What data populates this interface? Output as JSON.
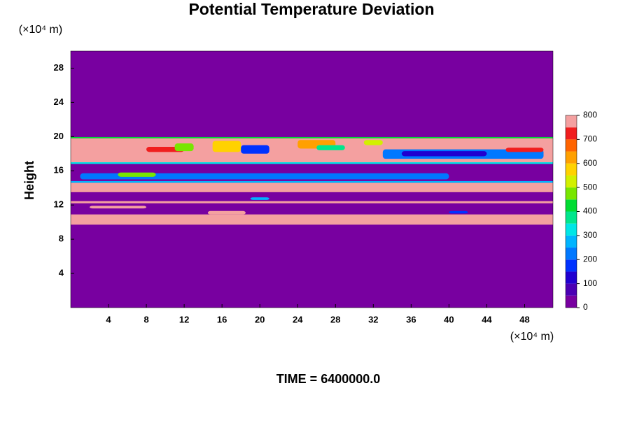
{
  "chart_data": {
    "type": "heatmap",
    "title": "Potential Temperature Deviation",
    "y_unit": "(×10⁴ m)",
    "x_unit": "(×10⁴ m)",
    "ylabel": "Height",
    "footer": "TIME = 6400000.0",
    "xlim": [
      0,
      51
    ],
    "ylim": [
      0,
      30
    ],
    "xticks": [
      4,
      8,
      12,
      16,
      20,
      24,
      28,
      32,
      36,
      40,
      44,
      48
    ],
    "yticks": [
      4,
      8,
      12,
      16,
      20,
      24,
      28
    ],
    "background": 0,
    "bands": [
      {
        "y0": 9.7,
        "y1": 10.9,
        "value": 800
      },
      {
        "y0": 12.2,
        "y1": 12.45,
        "value": 800
      },
      {
        "y0": 13.5,
        "y1": 14.6,
        "value": 800
      },
      {
        "y0": 14.6,
        "y1": 14.8,
        "value": 250
      },
      {
        "y0": 16.8,
        "y1": 17.0,
        "value": 300
      },
      {
        "y0": 17.0,
        "y1": 19.8,
        "value": 800
      },
      {
        "y0": 19.8,
        "y1": 19.95,
        "value": 400
      }
    ],
    "features": [
      {
        "x0": 33,
        "x1": 50,
        "y0": 17.4,
        "y1": 18.5,
        "value": 200
      },
      {
        "x0": 35,
        "x1": 44,
        "y0": 17.7,
        "y1": 18.3,
        "value": 100
      },
      {
        "x0": 8,
        "x1": 12,
        "y0": 18.2,
        "y1": 18.8,
        "value": 700
      },
      {
        "x0": 11,
        "x1": 13,
        "y0": 18.3,
        "y1": 19.2,
        "value": 450
      },
      {
        "x0": 15,
        "x1": 18,
        "y0": 18.2,
        "y1": 19.5,
        "value": 550
      },
      {
        "x0": 18,
        "x1": 21,
        "y0": 18.0,
        "y1": 19.0,
        "value": 150
      },
      {
        "x0": 24,
        "x1": 28,
        "y0": 18.6,
        "y1": 19.6,
        "value": 600
      },
      {
        "x0": 26,
        "x1": 29,
        "y0": 18.4,
        "y1": 19.0,
        "value": 350
      },
      {
        "x0": 31,
        "x1": 33,
        "y0": 19.0,
        "y1": 19.6,
        "value": 500
      },
      {
        "x0": 46,
        "x1": 50,
        "y0": 18.2,
        "y1": 18.7,
        "value": 700
      },
      {
        "x0": 1,
        "x1": 40,
        "y0": 15.0,
        "y1": 15.7,
        "value": 200
      },
      {
        "x0": 5,
        "x1": 9,
        "y0": 15.3,
        "y1": 15.8,
        "value": 450
      },
      {
        "x0": 2,
        "x1": 8,
        "y0": 11.6,
        "y1": 11.9,
        "value": 800
      },
      {
        "x0": 14.5,
        "x1": 18.5,
        "y0": 10.9,
        "y1": 11.3,
        "value": 800
      },
      {
        "x0": 40,
        "x1": 42,
        "y0": 11.0,
        "y1": 11.3,
        "value": 150
      },
      {
        "x0": 19,
        "x1": 21,
        "y0": 12.6,
        "y1": 12.9,
        "value": 250
      }
    ],
    "colorbar": {
      "levels": [
        0,
        50,
        100,
        150,
        200,
        250,
        300,
        350,
        400,
        450,
        500,
        550,
        600,
        650,
        700,
        750,
        800
      ],
      "colors": [
        "#7800a0",
        "#4b00b4",
        "#2000d0",
        "#0032ff",
        "#0078ff",
        "#00b4ff",
        "#00e6e6",
        "#00e68c",
        "#00dc32",
        "#78e600",
        "#d2f000",
        "#ffd200",
        "#ffa000",
        "#ff6400",
        "#f01e1e",
        "#f4a0a0"
      ],
      "ticks": [
        0,
        100,
        200,
        300,
        400,
        500,
        600,
        700,
        800
      ]
    }
  }
}
